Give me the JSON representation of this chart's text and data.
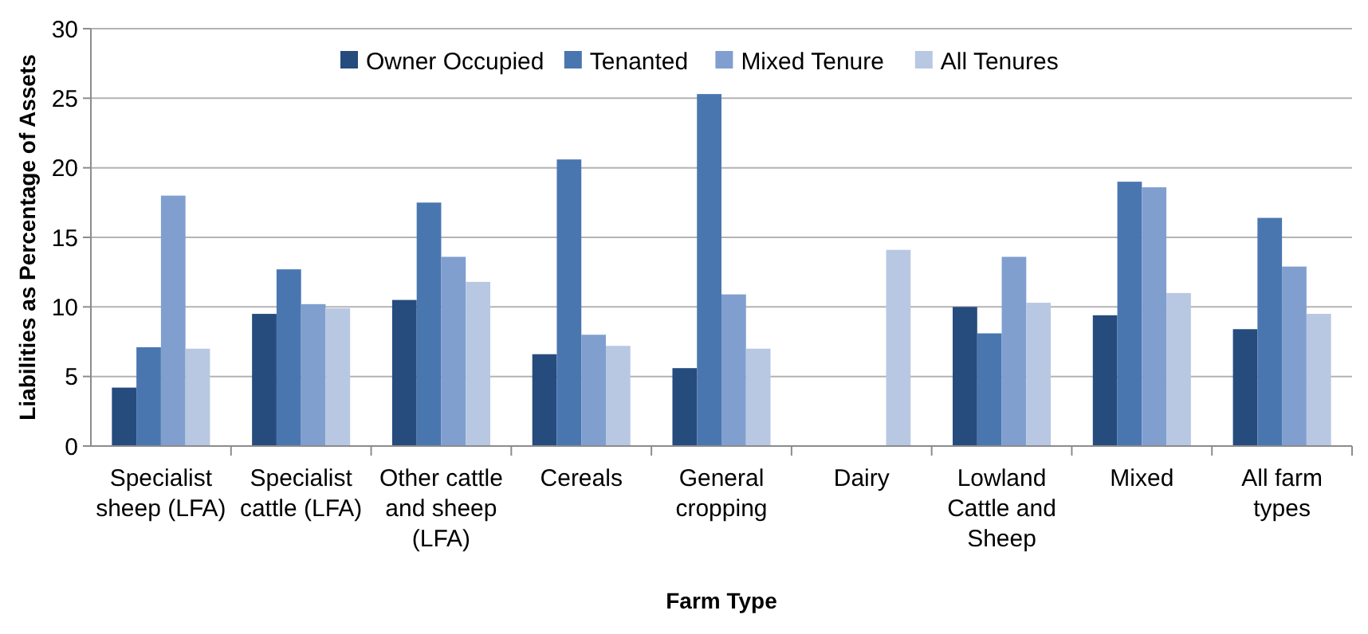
{
  "chart_data": {
    "type": "bar",
    "xlabel": "Farm Type",
    "ylabel": "Liabilities as Percentage of Assets",
    "categories": [
      "Specialist sheep (LFA)",
      "Specialist cattle (LFA)",
      "Other cattle and sheep (LFA)",
      "Cereals",
      "General cropping",
      "Dairy",
      "Lowland Cattle and Sheep",
      "Mixed",
      "All farm types"
    ],
    "series": [
      {
        "name": "Owner Occupied",
        "color": "#264b7d",
        "values": [
          4.2,
          9.5,
          10.5,
          6.6,
          5.6,
          null,
          10.0,
          9.4,
          8.4
        ]
      },
      {
        "name": "Tenanted",
        "color": "#4a76b0",
        "values": [
          7.1,
          12.7,
          17.5,
          20.6,
          25.3,
          null,
          8.1,
          19.0,
          16.4
        ]
      },
      {
        "name": "Mixed Tenure",
        "color": "#809fcf",
        "values": [
          18.0,
          10.2,
          13.6,
          8.0,
          10.9,
          null,
          13.6,
          18.6,
          12.9
        ]
      },
      {
        "name": "All Tenures",
        "color": "#b8c8e3",
        "values": [
          7.0,
          9.9,
          11.8,
          7.2,
          7.0,
          14.1,
          10.3,
          11.0,
          9.5
        ]
      }
    ],
    "ylim": [
      0,
      30
    ],
    "yticks": [
      0,
      5,
      10,
      15,
      20,
      25,
      30
    ],
    "grid": "y",
    "legend": "top"
  }
}
